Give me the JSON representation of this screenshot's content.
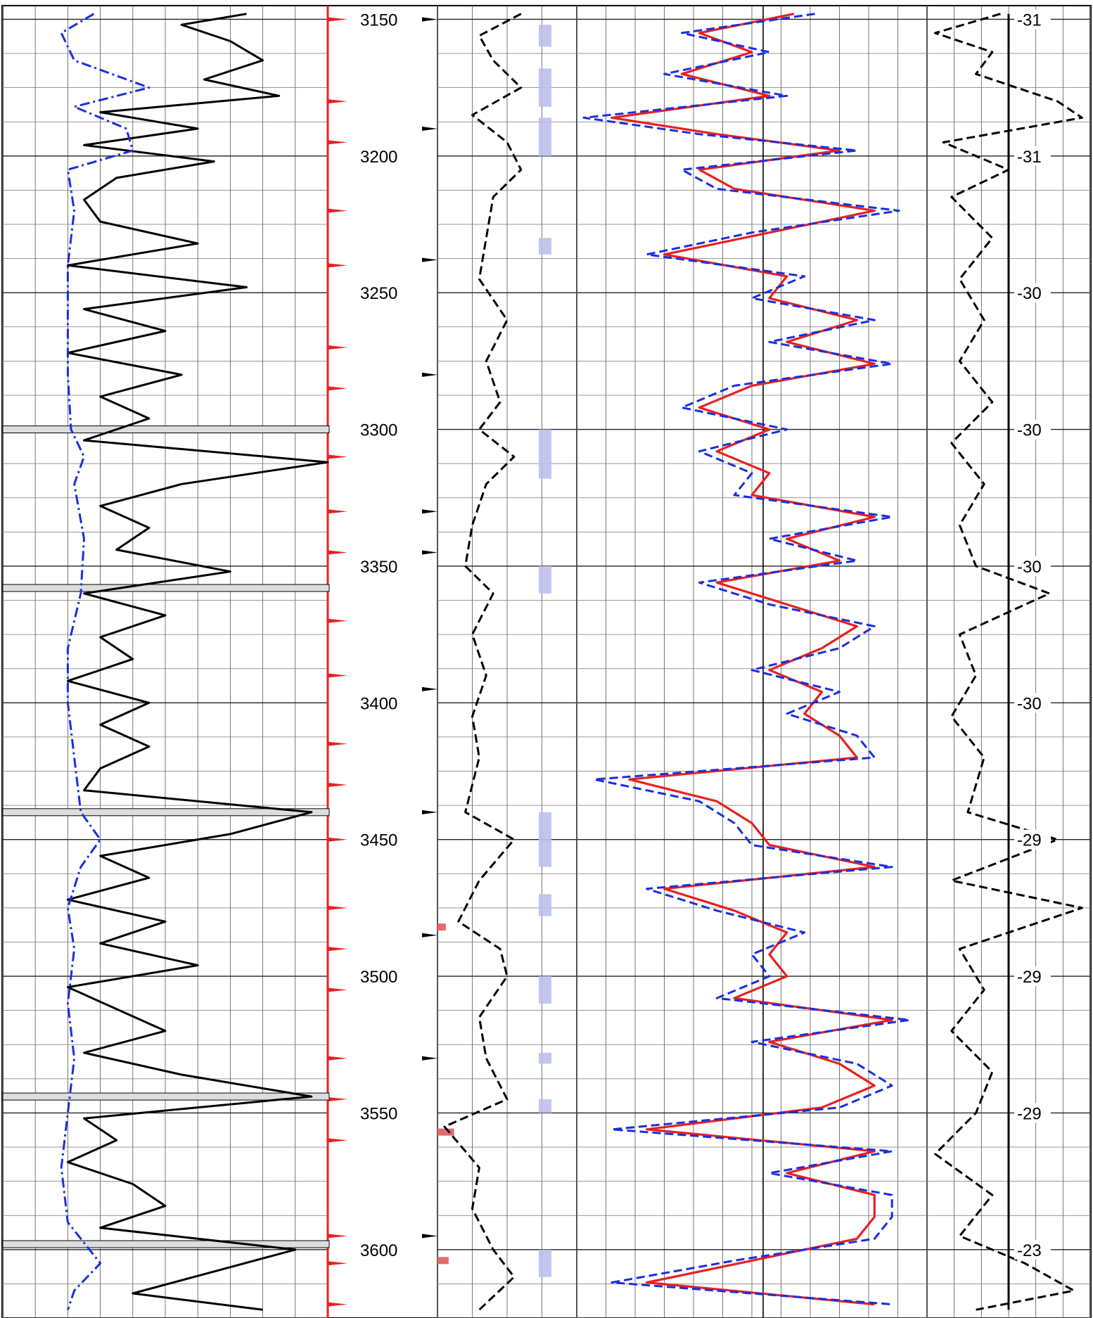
{
  "chart_data": {
    "type": "line",
    "title": "",
    "depth_axis": {
      "ylim": [
        3145,
        3625
      ],
      "tick_labels": [
        "3150",
        "3200",
        "3250",
        "3300",
        "3350",
        "3400",
        "3450",
        "3500",
        "3550",
        "3600"
      ],
      "tick_values": [
        3150,
        3200,
        3250,
        3300,
        3350,
        3400,
        3450,
        3500,
        3550,
        3600
      ],
      "minor_tick_step": 12.5
    },
    "tracks": [
      {
        "name_key": "track-1",
        "grid": true,
        "series": [
          {
            "style": "solid",
            "color": "#000000",
            "depth": [
              3148,
              3152,
              3158,
              3165,
              3172,
              3178,
              3184,
              3190,
              3196,
              3202,
              3208,
              3216,
              3224,
              3232,
              3240,
              3248,
              3256,
              3264,
              3272,
              3280,
              3288,
              3296,
              3304,
              3312,
              3320,
              3328,
              3336,
              3344,
              3352,
              3360,
              3368,
              3376,
              3384,
              3392,
              3400,
              3408,
              3416,
              3424,
              3432,
              3440,
              3448,
              3456,
              3464,
              3472,
              3480,
              3488,
              3496,
              3504,
              3512,
              3520,
              3528,
              3536,
              3544,
              3552,
              3560,
              3568,
              3576,
              3584,
              3592,
              3600,
              3608,
              3616,
              3622
            ],
            "value": [
              0.75,
              0.55,
              0.7,
              0.8,
              0.62,
              0.85,
              0.3,
              0.6,
              0.25,
              0.65,
              0.35,
              0.25,
              0.3,
              0.6,
              0.2,
              0.75,
              0.25,
              0.5,
              0.2,
              0.55,
              0.3,
              0.45,
              0.25,
              1.0,
              0.55,
              0.3,
              0.45,
              0.35,
              0.7,
              0.25,
              0.5,
              0.3,
              0.4,
              0.2,
              0.45,
              0.3,
              0.45,
              0.3,
              0.25,
              0.95,
              0.7,
              0.3,
              0.45,
              0.2,
              0.5,
              0.3,
              0.6,
              0.2,
              0.35,
              0.5,
              0.25,
              0.55,
              0.95,
              0.25,
              0.35,
              0.2,
              0.4,
              0.5,
              0.3,
              0.9,
              0.65,
              0.4,
              0.8
            ]
          },
          {
            "style": "dash-dot",
            "color": "#1a2ee0",
            "depth": [
              3148,
              3155,
              3165,
              3175,
              3182,
              3190,
              3198,
              3205,
              3220,
              3240,
              3260,
              3280,
              3300,
              3310,
              3320,
              3340,
              3360,
              3380,
              3400,
              3420,
              3440,
              3450,
              3460,
              3475,
              3490,
              3510,
              3530,
              3550,
              3570,
              3590,
              3605,
              3615,
              3622
            ],
            "value": [
              0.28,
              0.18,
              0.22,
              0.45,
              0.22,
              0.38,
              0.4,
              0.2,
              0.22,
              0.2,
              0.2,
              0.2,
              0.21,
              0.25,
              0.22,
              0.25,
              0.24,
              0.2,
              0.2,
              0.22,
              0.24,
              0.3,
              0.24,
              0.2,
              0.22,
              0.2,
              0.22,
              0.2,
              0.18,
              0.2,
              0.3,
              0.22,
              0.2
            ]
          }
        ]
      },
      {
        "name_key": "track-3",
        "grid": true,
        "series": [
          {
            "style": "dashed",
            "color": "#000000",
            "depth": [
              3148,
              3156,
              3165,
              3175,
              3185,
              3195,
              3205,
              3215,
              3230,
              3245,
              3260,
              3275,
              3290,
              3300,
              3310,
              3320,
              3335,
              3350,
              3360,
              3375,
              3390,
              3405,
              3420,
              3440,
              3450,
              3465,
              3480,
              3490,
              3500,
              3515,
              3530,
              3545,
              3555,
              3570,
              3585,
              3600,
              3610,
              3622
            ],
            "value": [
              0.6,
              0.3,
              0.4,
              0.6,
              0.25,
              0.5,
              0.6,
              0.4,
              0.35,
              0.3,
              0.5,
              0.35,
              0.45,
              0.3,
              0.55,
              0.35,
              0.25,
              0.2,
              0.4,
              0.25,
              0.35,
              0.25,
              0.3,
              0.2,
              0.55,
              0.3,
              0.15,
              0.45,
              0.5,
              0.3,
              0.35,
              0.5,
              0.05,
              0.3,
              0.25,
              0.4,
              0.55,
              0.3
            ]
          }
        ]
      },
      {
        "name_key": "track-4",
        "grid": true,
        "series": [
          {
            "style": "solid",
            "color": "#e82020",
            "depth": [
              3148,
              3155,
              3162,
              3170,
              3178,
              3186,
              3192,
              3198,
              3205,
              3212,
              3220,
              3228,
              3236,
              3244,
              3252,
              3260,
              3268,
              3276,
              3284,
              3292,
              3300,
              3308,
              3316,
              3324,
              3332,
              3340,
              3348,
              3356,
              3364,
              3372,
              3380,
              3388,
              3396,
              3404,
              3412,
              3420,
              3428,
              3436,
              3444,
              3452,
              3460,
              3468,
              3476,
              3484,
              3492,
              3500,
              3508,
              3516,
              3524,
              3532,
              3540,
              3548,
              3556,
              3564,
              3572,
              3580,
              3588,
              3596,
              3604,
              3612,
              3620
            ],
            "value": [
              0.62,
              0.35,
              0.5,
              0.3,
              0.55,
              0.1,
              0.4,
              0.75,
              0.35,
              0.45,
              0.85,
              0.55,
              0.25,
              0.6,
              0.55,
              0.8,
              0.6,
              0.85,
              0.5,
              0.35,
              0.55,
              0.4,
              0.55,
              0.5,
              0.85,
              0.6,
              0.75,
              0.4,
              0.6,
              0.8,
              0.7,
              0.55,
              0.7,
              0.65,
              0.75,
              0.8,
              0.15,
              0.4,
              0.5,
              0.55,
              0.85,
              0.25,
              0.45,
              0.6,
              0.55,
              0.6,
              0.45,
              0.9,
              0.55,
              0.75,
              0.85,
              0.7,
              0.2,
              0.85,
              0.6,
              0.85,
              0.85,
              0.8,
              0.5,
              0.2,
              0.85
            ]
          },
          {
            "style": "dashed",
            "color": "#1a2ee0",
            "depth": [
              3148,
              3155,
              3162,
              3170,
              3178,
              3186,
              3192,
              3198,
              3205,
              3212,
              3220,
              3228,
              3236,
              3244,
              3252,
              3260,
              3268,
              3276,
              3284,
              3292,
              3300,
              3308,
              3316,
              3324,
              3332,
              3340,
              3348,
              3356,
              3364,
              3372,
              3380,
              3388,
              3396,
              3404,
              3412,
              3420,
              3428,
              3436,
              3444,
              3452,
              3460,
              3468,
              3476,
              3484,
              3492,
              3500,
              3508,
              3516,
              3524,
              3532,
              3540,
              3548,
              3556,
              3564,
              3572,
              3580,
              3588,
              3596,
              3604,
              3612,
              3620
            ],
            "value": [
              0.68,
              0.3,
              0.55,
              0.25,
              0.6,
              0.02,
              0.35,
              0.8,
              0.3,
              0.4,
              0.92,
              0.5,
              0.2,
              0.65,
              0.5,
              0.85,
              0.55,
              0.9,
              0.45,
              0.3,
              0.6,
              0.35,
              0.5,
              0.45,
              0.9,
              0.55,
              0.8,
              0.35,
              0.55,
              0.85,
              0.75,
              0.5,
              0.75,
              0.6,
              0.8,
              0.85,
              0.05,
              0.35,
              0.45,
              0.5,
              0.9,
              0.2,
              0.4,
              0.65,
              0.5,
              0.55,
              0.4,
              0.95,
              0.5,
              0.8,
              0.9,
              0.75,
              0.1,
              0.9,
              0.55,
              0.9,
              0.9,
              0.85,
              0.45,
              0.1,
              0.9
            ]
          }
        ]
      },
      {
        "name_key": "track-5",
        "grid": true,
        "series": [
          {
            "style": "dashed",
            "color": "#000000",
            "depth": [
              3148,
              3155,
              3162,
              3170,
              3180,
              3186,
              3195,
              3205,
              3215,
              3230,
              3245,
              3260,
              3275,
              3290,
              3305,
              3320,
              3335,
              3350,
              3360,
              3375,
              3390,
              3405,
              3420,
              3440,
              3450,
              3465,
              3475,
              3490,
              3505,
              3520,
              3535,
              3550,
              3565,
              3580,
              3595,
              3605,
              3615,
              3622
            ],
            "value": [
              0.45,
              0.05,
              0.4,
              0.3,
              0.8,
              0.95,
              0.1,
              0.5,
              0.15,
              0.4,
              0.2,
              0.35,
              0.2,
              0.4,
              0.15,
              0.35,
              0.2,
              0.3,
              0.75,
              0.2,
              0.3,
              0.15,
              0.35,
              0.25,
              0.8,
              0.15,
              0.95,
              0.2,
              0.35,
              0.15,
              0.4,
              0.3,
              0.05,
              0.4,
              0.2,
              0.6,
              0.9,
              0.3
            ]
          },
          {
            "style": "solid",
            "color": "#000000",
            "depth": [
              3148,
              3622
            ],
            "value": [
              0.5,
              0.5
            ]
          }
        ]
      }
    ],
    "temperature_labels": {
      "values": [
        "-31",
        "-31",
        "-30",
        "-30",
        "-30",
        "-30",
        "-29",
        "-29",
        "-29",
        "-23"
      ],
      "depths": [
        3150,
        3200,
        3250,
        3300,
        3350,
        3400,
        3450,
        3500,
        3550,
        3600
      ]
    },
    "depth_markers": {
      "depths": [
        3150,
        3180,
        3195,
        3220,
        3240,
        3270,
        3285,
        3310,
        3330,
        3345,
        3370,
        3390,
        3415,
        3430,
        3450,
        3475,
        3490,
        3505,
        3530,
        3545,
        3560,
        3595,
        3605,
        3620
      ],
      "colors": [
        "#e82020",
        "#e82020",
        "#e82020",
        "#e82020",
        "#e82020",
        "#e82020",
        "#e82020",
        "#e82020",
        "#e82020",
        "#e82020",
        "#e82020",
        "#e82020",
        "#e82020",
        "#e82020",
        "#e82020",
        "#e82020",
        "#e82020",
        "#e82020",
        "#e82020",
        "#e82020",
        "#e82020",
        "#e82020",
        "#e82020",
        "#e82020"
      ]
    },
    "core_marks_depths": [
      3150,
      3190,
      3238,
      3280,
      3330,
      3345,
      3395,
      3440,
      3485,
      3530,
      3595
    ],
    "perforations_depths": [
      3300,
      3358,
      3440,
      3544,
      3598
    ],
    "shaded_intervals": [
      {
        "from": 3152,
        "to": 3160
      },
      {
        "from": 3168,
        "to": 3182
      },
      {
        "from": 3186,
        "to": 3200
      },
      {
        "from": 3230,
        "to": 3236
      },
      {
        "from": 3300,
        "to": 3318
      },
      {
        "from": 3350,
        "to": 3360
      },
      {
        "from": 3440,
        "to": 3460
      },
      {
        "from": 3470,
        "to": 3478
      },
      {
        "from": 3500,
        "to": 3510
      },
      {
        "from": 3528,
        "to": 3532
      },
      {
        "from": 3545,
        "to": 3550
      },
      {
        "from": 3600,
        "to": 3610
      }
    ],
    "red_fills": [
      {
        "depth": 3482,
        "width": 0.06
      },
      {
        "depth": 3557,
        "width": 0.12
      },
      {
        "depth": 3604,
        "width": 0.08
      }
    ]
  }
}
